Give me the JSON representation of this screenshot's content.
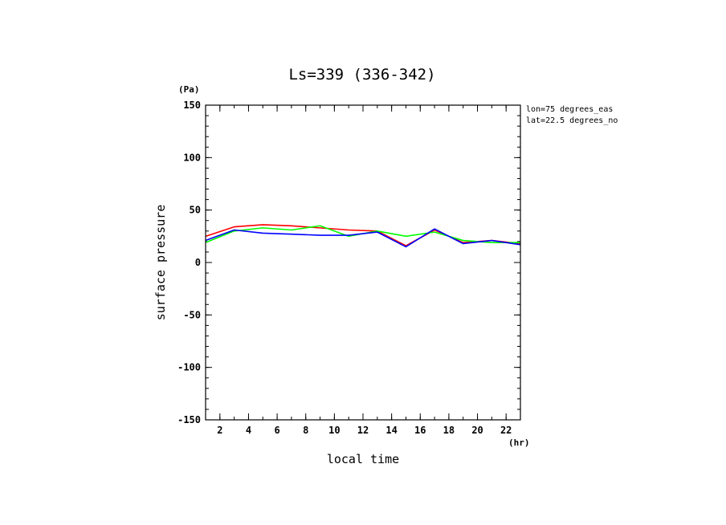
{
  "chart_data": {
    "type": "line",
    "title": "Ls=339 (336-342)",
    "xlabel": "local time",
    "ylabel": "surface pressure",
    "x_unit": "(hr)",
    "y_unit": "(Pa)",
    "xlim": [
      1,
      23
    ],
    "ylim": [
      -150,
      150
    ],
    "x_ticks": [
      2,
      4,
      6,
      8,
      10,
      12,
      14,
      16,
      18,
      20,
      22
    ],
    "y_ticks": [
      -150,
      -100,
      -50,
      0,
      50,
      100,
      150
    ],
    "grid": false,
    "info_lines": [
      "lon=75 degrees_eas",
      "lat=22.5 degrees_no"
    ],
    "x": [
      1,
      3,
      5,
      7,
      9,
      11,
      13,
      15,
      17,
      19,
      21,
      23
    ],
    "series": [
      {
        "color": "#ff0000",
        "values": [
          25,
          34,
          36,
          35,
          33,
          31,
          30,
          16,
          31,
          19,
          21,
          18
        ]
      },
      {
        "color": "#00ff00",
        "values": [
          19,
          30,
          33,
          31,
          35,
          25,
          30,
          25,
          29,
          21,
          19,
          19
        ]
      },
      {
        "color": "#0000ff",
        "values": [
          21,
          31,
          28,
          27,
          26,
          26,
          29,
          15,
          32,
          18,
          21,
          17
        ]
      }
    ]
  }
}
